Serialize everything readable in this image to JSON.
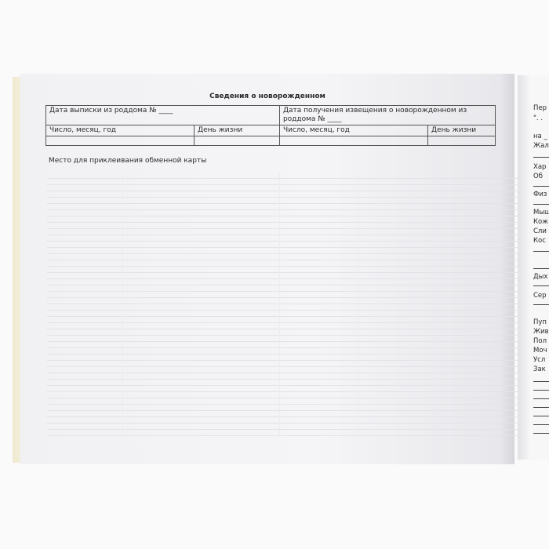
{
  "left_page": {
    "title": "Сведения о новорожденном",
    "discharge_header": "Дата выписки из роддома № ____",
    "notice_header": "Дата получения извещения о новорожденном из роддома № ____",
    "col_date": "Число, месяц, год",
    "col_day": "День жизни",
    "caption": "Место для приклеивания обменной карты"
  },
  "right_page": {
    "lines": [
      "Пер",
      "\". .",
      "на _",
      "Жал",
      "Хар",
      "Об",
      "Физ",
      "Мыш",
      "Кож",
      "Сли",
      "Кос",
      "Дых",
      "Сер",
      "Пуп",
      "Жив",
      "Пол",
      "Моч",
      "Усл",
      "Зак"
    ]
  }
}
